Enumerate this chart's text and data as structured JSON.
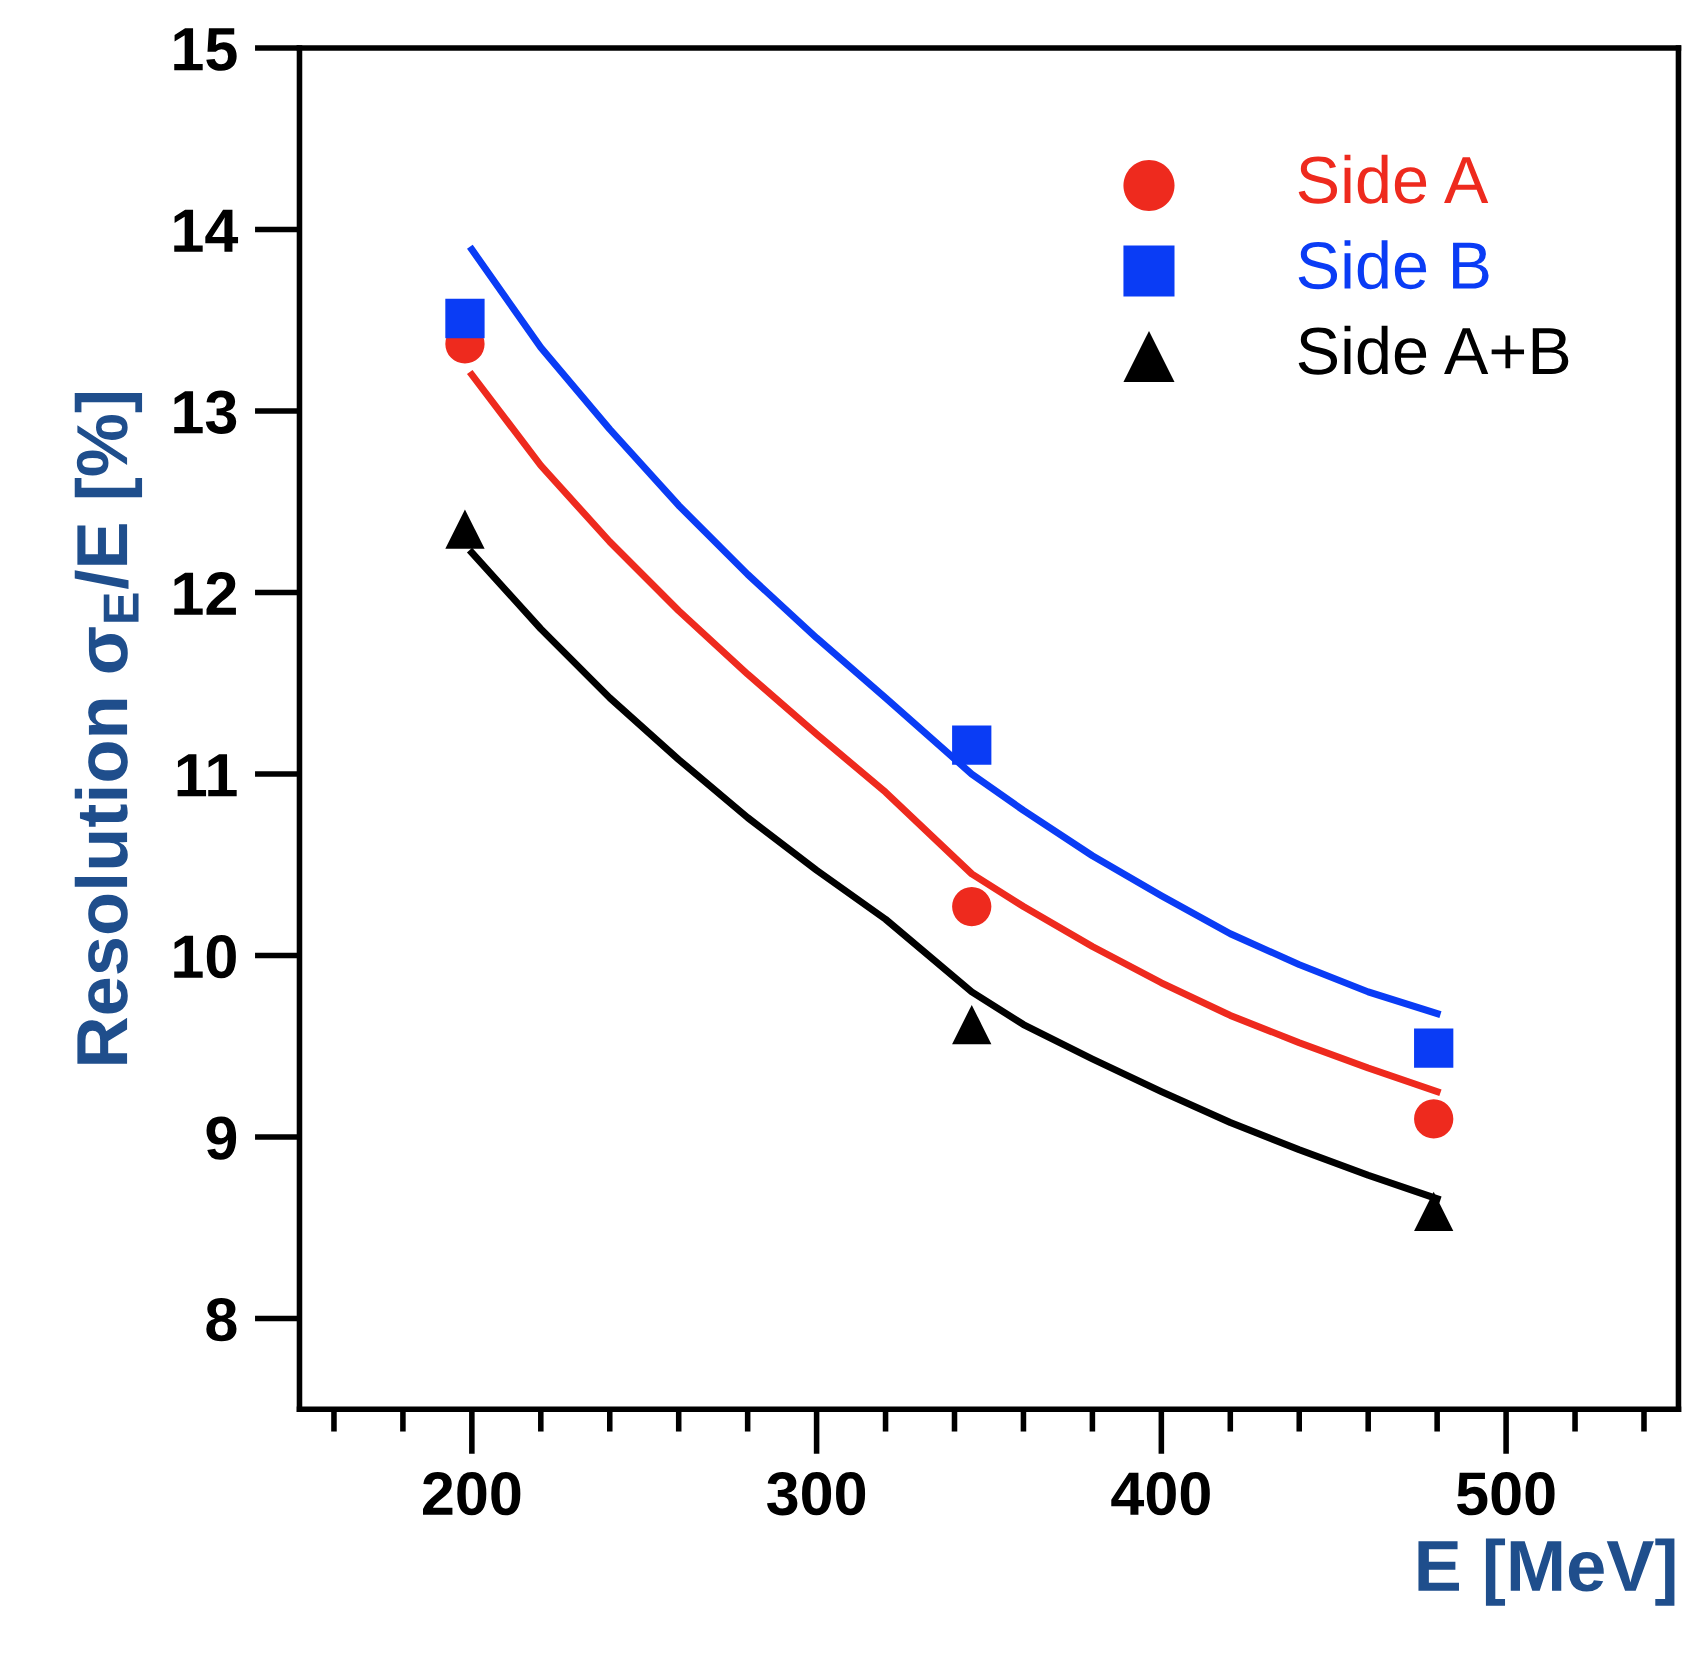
{
  "chart_data": {
    "type": "scatter",
    "xlabel": "E [MeV]",
    "ylabel": "Resolution σ$_{E}$/E [%]",
    "xlim": [
      150,
      550
    ],
    "ylim": [
      7.5,
      15
    ],
    "xticks": [
      200,
      300,
      400,
      500,
      {
        "value": 160,
        "label": null
      },
      {
        "value": 180,
        "label": null
      },
      {
        "value": 220,
        "label": null
      },
      {
        "value": 240,
        "label": null
      },
      {
        "value": 260,
        "label": null
      },
      {
        "value": 280,
        "label": null
      },
      {
        "value": 320,
        "label": null
      },
      {
        "value": 340,
        "label": null
      },
      {
        "value": 360,
        "label": null
      },
      {
        "value": 380,
        "label": null
      },
      {
        "value": 420,
        "label": null
      },
      {
        "value": 440,
        "label": null
      },
      {
        "value": 460,
        "label": null
      },
      {
        "value": 480,
        "label": null
      },
      {
        "value": 520,
        "label": null
      },
      {
        "value": 540,
        "label": null
      }
    ],
    "yticks": [
      8,
      9,
      10,
      11,
      12,
      13,
      14,
      15
    ],
    "grid": false,
    "legend": "top right",
    "series": [
      {
        "name": "Side A",
        "color": "#ee2a1e",
        "marker": "circle",
        "x": [
          198,
          345,
          479
        ],
        "values": [
          13.37,
          10.27,
          9.1
        ]
      },
      {
        "name": "Side B",
        "color": "#0a3cf5",
        "marker": "square",
        "x": [
          198,
          345,
          479
        ],
        "values": [
          13.51,
          11.16,
          9.49
        ]
      },
      {
        "name": "Side A+B",
        "color": "#000000",
        "marker": "triangle",
        "x": [
          198,
          345,
          479
        ],
        "values": [
          12.35,
          9.62,
          8.59
        ]
      },
      {
        "type": "line",
        "color": "#0a3cf5",
        "marker": "none",
        "line_style": "solid",
        "x": [
          200,
          220,
          240,
          260,
          280,
          300,
          320,
          345,
          360,
          380,
          400,
          420,
          440,
          460,
          480
        ],
        "values": [
          13.89,
          13.35,
          12.9,
          12.48,
          12.1,
          11.75,
          11.42,
          11.0,
          10.8,
          10.55,
          10.33,
          10.12,
          9.95,
          9.8,
          9.68
        ]
      },
      {
        "type": "line",
        "color": "#ee2a1e",
        "marker": "none",
        "line_style": "solid",
        "x": [
          200,
          220,
          240,
          260,
          280,
          300,
          320,
          345,
          360,
          380,
          400,
          420,
          440,
          460,
          480
        ],
        "values": [
          13.2,
          12.7,
          12.28,
          11.9,
          11.55,
          11.22,
          10.9,
          10.45,
          10.27,
          10.05,
          9.85,
          9.67,
          9.52,
          9.38,
          9.25
        ]
      },
      {
        "type": "line",
        "color": "#000000",
        "marker": "none",
        "line_style": "solid",
        "x": [
          200,
          220,
          240,
          260,
          280,
          300,
          320,
          345,
          360,
          380,
          400,
          420,
          440,
          460,
          480
        ],
        "values": [
          12.22,
          11.8,
          11.42,
          11.08,
          10.76,
          10.47,
          10.2,
          9.8,
          9.62,
          9.43,
          9.25,
          9.08,
          8.93,
          8.79,
          8.66
        ]
      }
    ]
  }
}
